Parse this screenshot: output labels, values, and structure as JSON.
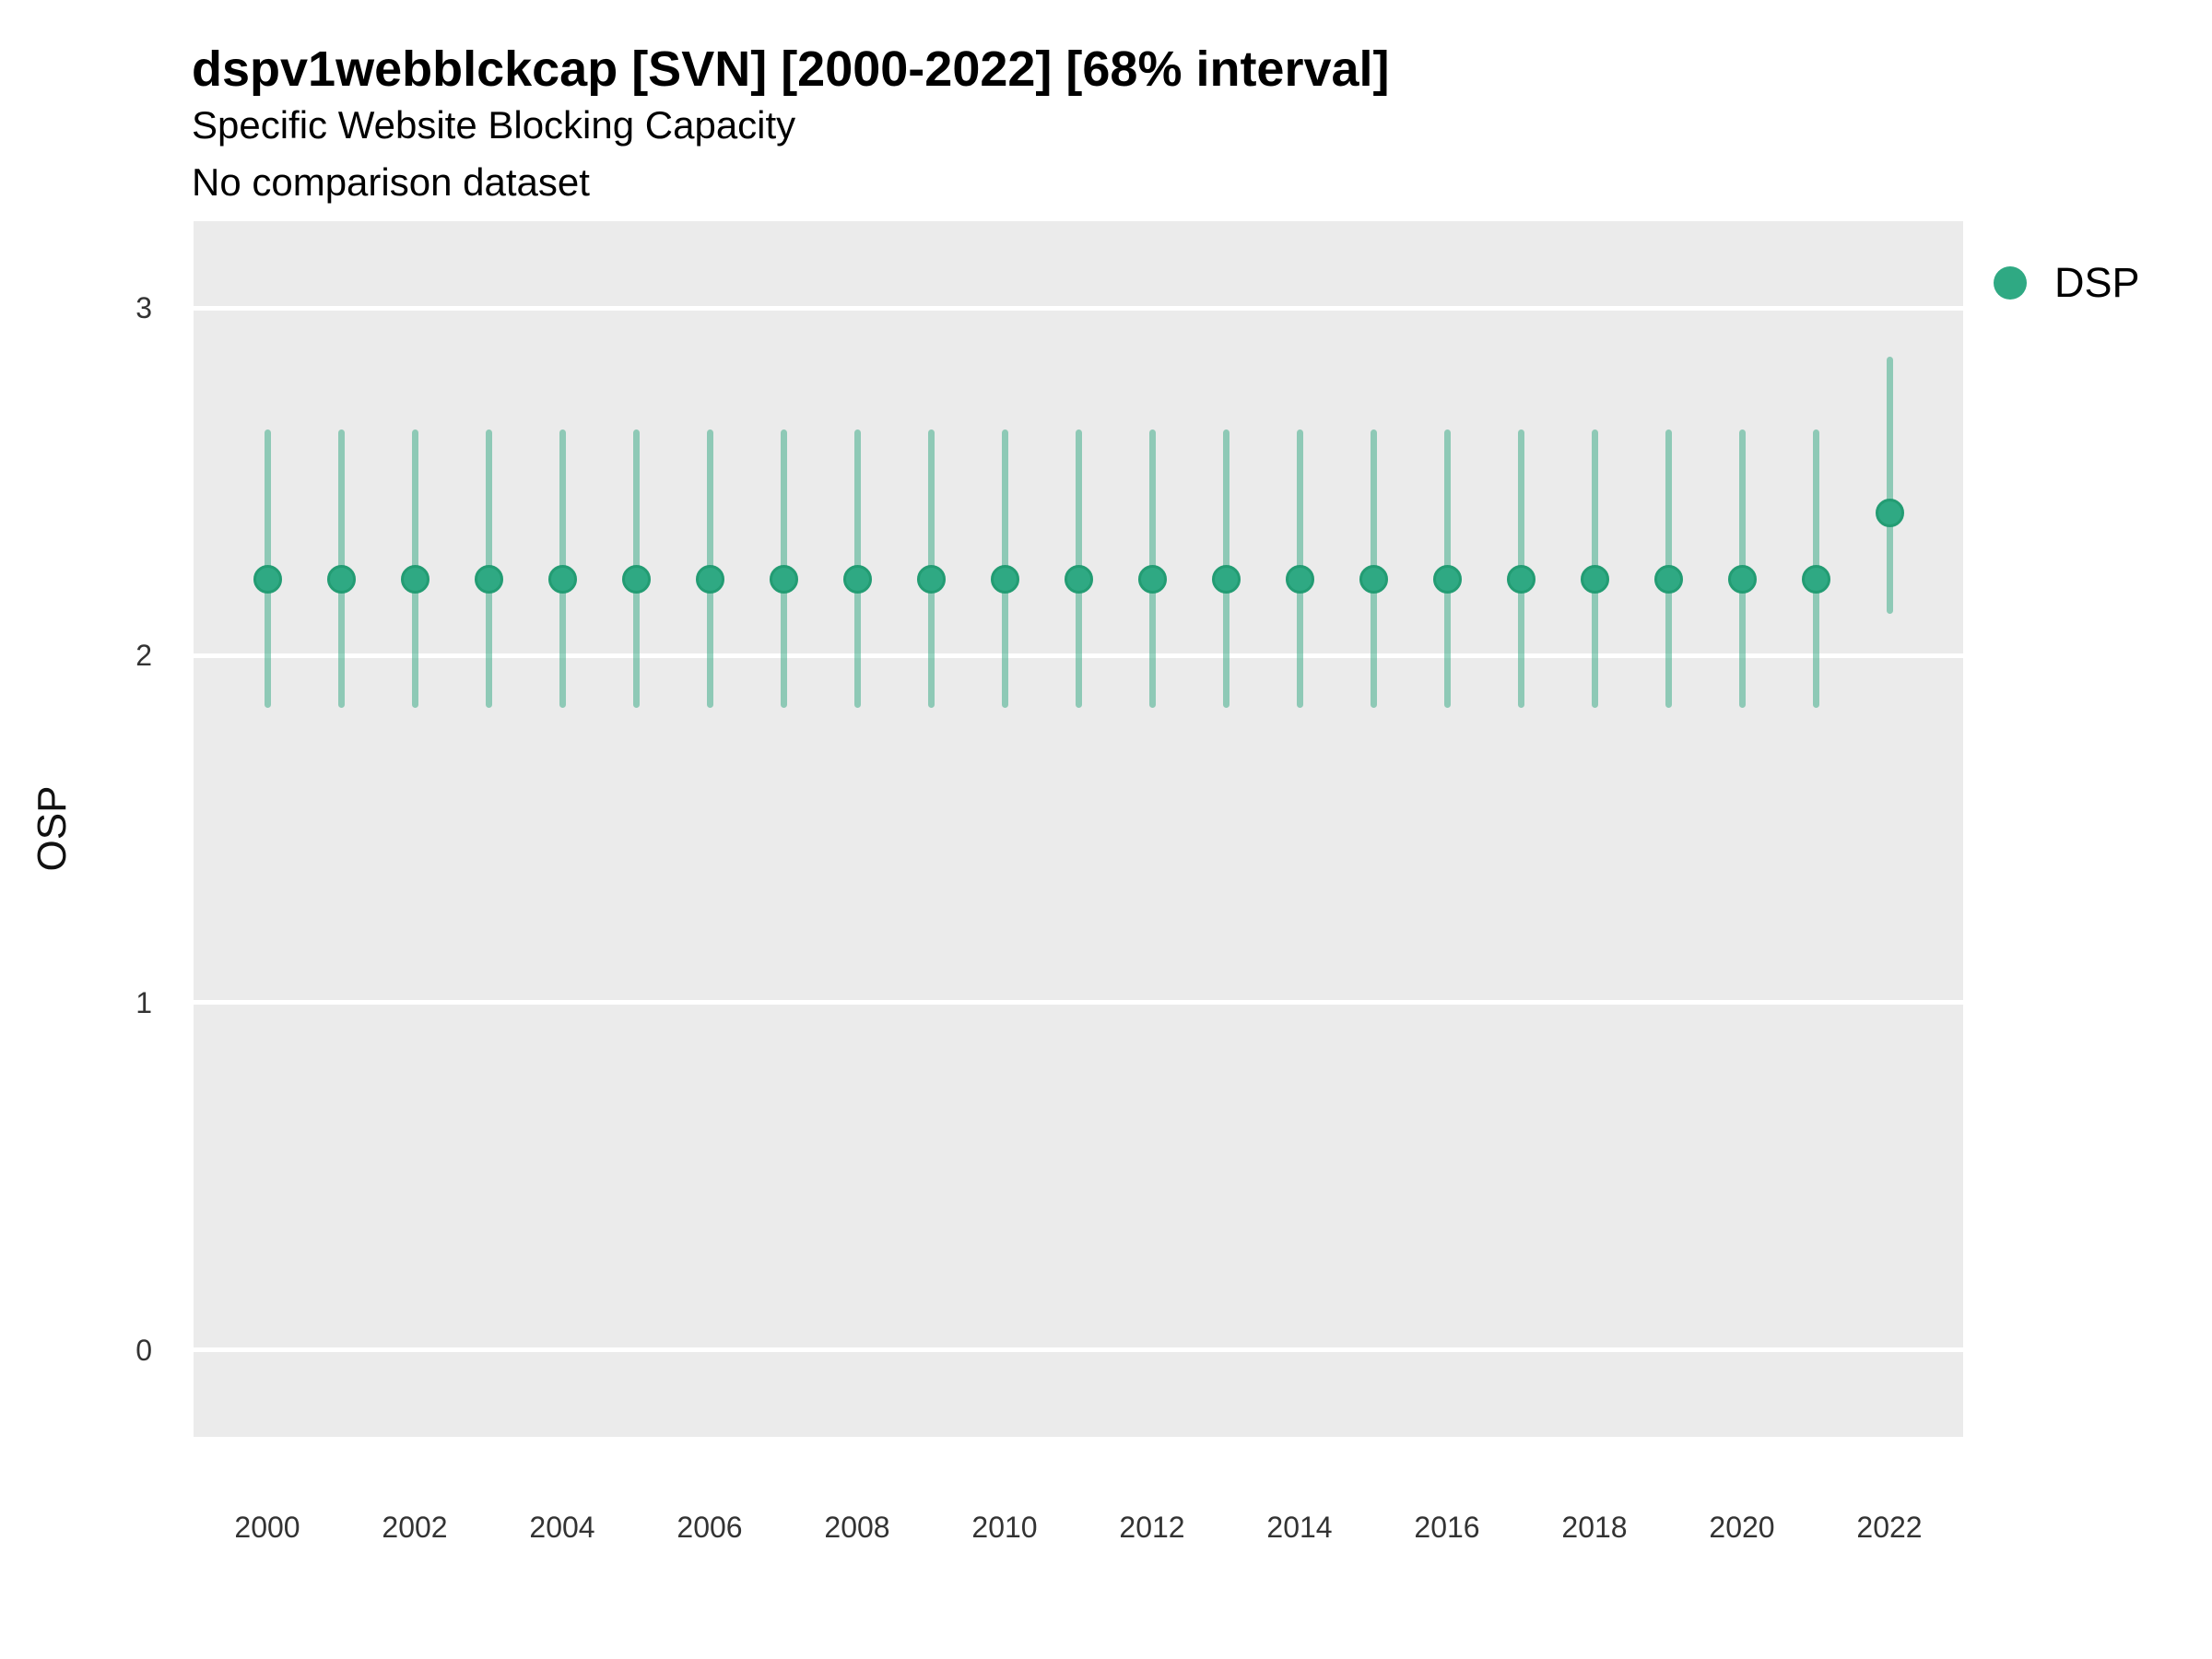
{
  "header": {
    "title": "dspv1webblckcap [SVN] [2000-2022] [68% interval]",
    "subtitle": "Specific Website Blocking Capacity",
    "note": "No comparison dataset"
  },
  "legend": {
    "position": "top-right",
    "items": [
      {
        "label": "DSP",
        "marker": "circle",
        "color": "#2FA983"
      }
    ]
  },
  "chart_data": {
    "type": "scatter",
    "title": "dspv1webblckcap [SVN] [2000-2022] [68% interval]",
    "subtitle": "Specific Website Blocking Capacity",
    "note": "No comparison dataset",
    "xlabel": "",
    "ylabel": "OSP",
    "interval": "68%",
    "x": [
      2000,
      2001,
      2002,
      2003,
      2004,
      2005,
      2006,
      2007,
      2008,
      2009,
      2010,
      2011,
      2012,
      2013,
      2014,
      2015,
      2016,
      2017,
      2018,
      2019,
      2020,
      2021,
      2022
    ],
    "series": [
      {
        "name": "DSP",
        "values": [
          2.22,
          2.22,
          2.22,
          2.22,
          2.22,
          2.22,
          2.22,
          2.22,
          2.22,
          2.22,
          2.22,
          2.22,
          2.22,
          2.22,
          2.22,
          2.22,
          2.22,
          2.22,
          2.22,
          2.22,
          2.22,
          2.22,
          2.41
        ],
        "low": [
          1.85,
          1.85,
          1.85,
          1.85,
          1.85,
          1.85,
          1.85,
          1.85,
          1.85,
          1.85,
          1.85,
          1.85,
          1.85,
          1.85,
          1.85,
          1.85,
          1.85,
          1.85,
          1.85,
          1.85,
          1.85,
          1.85,
          2.12
        ],
        "high": [
          2.65,
          2.65,
          2.65,
          2.65,
          2.65,
          2.65,
          2.65,
          2.65,
          2.65,
          2.65,
          2.65,
          2.65,
          2.65,
          2.65,
          2.65,
          2.65,
          2.65,
          2.65,
          2.65,
          2.65,
          2.65,
          2.65,
          2.86
        ]
      }
    ],
    "x_ticks": [
      2000,
      2002,
      2004,
      2006,
      2008,
      2010,
      2012,
      2014,
      2016,
      2018,
      2020,
      2022
    ],
    "y_ticks": [
      0,
      1,
      2,
      3
    ],
    "xlim": [
      1999,
      2023
    ],
    "ylim": [
      -0.25,
      3.25
    ],
    "grid": "horizontal-major-only",
    "legend_position": "top-right",
    "colors": {
      "point": "#2FA983",
      "point_border": "#239C73",
      "interval_line": "rgba(49,168,130,0.5)",
      "panel_bg": "#EBEBEB",
      "gridline": "#FFFFFF"
    }
  }
}
